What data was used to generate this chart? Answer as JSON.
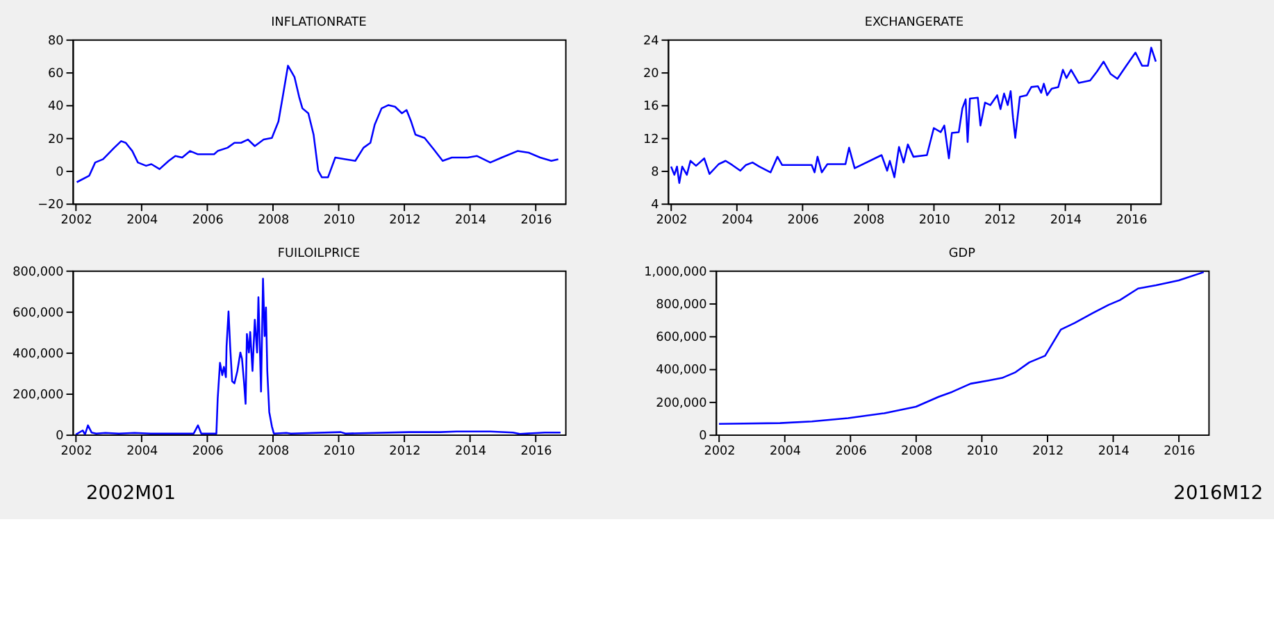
{
  "chart_data": [
    {
      "type": "line",
      "title": "INFLATIONRATE",
      "x": [
        2002.03,
        2002.41,
        2002.59,
        2002.83,
        2003.17,
        2003.38,
        2003.52,
        2003.72,
        2003.89,
        2004.14,
        2004.3,
        2004.55,
        2004.83,
        2005.03,
        2005.24,
        2005.48,
        2005.72,
        2006.21,
        2006.32,
        2006.62,
        2006.83,
        2007.03,
        2007.24,
        2007.45,
        2007.72,
        2007.97,
        2008.17,
        2008.3,
        2008.46,
        2008.66,
        2008.8,
        2008.9,
        2009.08,
        2009.24,
        2009.38,
        2009.49,
        2009.68,
        2009.9,
        2010.21,
        2010.51,
        2010.76,
        2010.97,
        2011.1,
        2011.31,
        2011.52,
        2011.72,
        2011.93,
        2012.07,
        2012.21,
        2012.34,
        2012.62,
        2012.9,
        2013.17,
        2013.45,
        2013.93,
        2014.21,
        2014.62,
        2014.97,
        2015.45,
        2015.79,
        2016.14,
        2016.48,
        2016.69
      ],
      "series": [
        {
          "color": "#0000ff",
          "values": [
            -7,
            -3,
            5,
            7,
            14,
            18,
            17,
            12,
            5,
            3,
            4,
            1,
            6,
            9,
            8,
            12,
            10,
            10,
            12,
            14,
            17,
            17,
            19,
            15,
            19,
            20,
            30,
            45,
            64,
            57,
            45,
            38,
            35,
            22,
            0,
            -4,
            -4,
            8,
            7,
            6,
            14,
            17,
            28,
            38,
            40,
            39,
            35,
            37,
            30,
            22,
            20,
            13,
            6,
            8,
            8,
            9,
            5,
            8,
            12,
            11,
            8,
            6,
            7
          ]
        }
      ],
      "xlim": [
        2001.9,
        2016.9
      ],
      "xticks": [
        2002,
        2004,
        2006,
        2008,
        2010,
        2012,
        2014,
        2016
      ],
      "ylim": [
        -20,
        80
      ],
      "yticks": [
        -20,
        0,
        20,
        40,
        60,
        80
      ],
      "grid": false
    },
    {
      "type": "line",
      "title": "EXCHANGERATE",
      "x": [
        2002.0,
        2002.1,
        2002.18,
        2002.25,
        2002.34,
        2002.48,
        2002.59,
        2002.76,
        2003.01,
        2003.17,
        2003.45,
        2003.66,
        2003.86,
        2004.11,
        2004.28,
        2004.48,
        2004.69,
        2005.03,
        2005.24,
        2005.38,
        2006.28,
        2006.37,
        2006.46,
        2006.59,
        2006.76,
        2007.31,
        2007.42,
        2007.59,
        2008.41,
        2008.58,
        2008.66,
        2008.8,
        2008.94,
        2009.08,
        2009.21,
        2009.38,
        2009.79,
        2010.0,
        2010.21,
        2010.32,
        2010.46,
        2010.55,
        2010.76,
        2010.87,
        2010.97,
        2011.03,
        2011.1,
        2011.34,
        2011.42,
        2011.56,
        2011.72,
        2011.93,
        2012.03,
        2012.14,
        2012.25,
        2012.34,
        2012.41,
        2012.48,
        2012.55,
        2012.62,
        2012.83,
        2012.97,
        2013.17,
        2013.27,
        2013.35,
        2013.45,
        2013.59,
        2013.79,
        2013.93,
        2014.04,
        2014.18,
        2014.41,
        2014.76,
        2014.97,
        2015.17,
        2015.38,
        2015.59,
        2015.86,
        2016.14,
        2016.34,
        2016.52,
        2016.62,
        2016.76
      ],
      "series": [
        {
          "color": "#0000ff",
          "values": [
            8.5,
            7.5,
            8.5,
            6.5,
            8.5,
            7.5,
            9.2,
            8.6,
            9.5,
            7.6,
            8.8,
            9.2,
            8.7,
            8.0,
            8.7,
            9.0,
            8.5,
            7.8,
            9.7,
            8.7,
            8.7,
            7.8,
            9.7,
            7.8,
            8.8,
            8.8,
            10.8,
            8.3,
            9.9,
            8.0,
            9.2,
            7.2,
            10.9,
            9.0,
            11.2,
            9.7,
            9.9,
            13.2,
            12.7,
            13.5,
            9.5,
            12.6,
            12.7,
            15.6,
            16.7,
            11.5,
            16.8,
            16.9,
            13.5,
            16.3,
            16.0,
            17.2,
            15.5,
            17.4,
            16.0,
            17.7,
            14.5,
            12.0,
            14.5,
            17.0,
            17.2,
            18.2,
            18.3,
            17.5,
            18.6,
            17.2,
            18.0,
            18.2,
            20.3,
            19.3,
            20.3,
            18.7,
            19.0,
            20.1,
            21.3,
            19.8,
            19.2,
            20.8,
            22.4,
            20.8,
            20.8,
            23.0,
            21.3
          ]
        }
      ],
      "xlim": [
        2001.9,
        2016.9
      ],
      "xticks": [
        2002,
        2004,
        2006,
        2008,
        2010,
        2012,
        2014,
        2016
      ],
      "ylim": [
        4,
        24
      ],
      "yticks": [
        4,
        8,
        12,
        16,
        20,
        24
      ],
      "grid": false
    },
    {
      "type": "line",
      "title": "FUILOILPRICE",
      "x": [
        2002.0,
        2002.21,
        2002.28,
        2002.37,
        2002.48,
        2002.62,
        2002.9,
        2003.31,
        2003.79,
        2004.28,
        2005.59,
        2005.72,
        2005.82,
        2006.28,
        2006.32,
        2006.39,
        2006.46,
        2006.51,
        2006.57,
        2006.59,
        2006.65,
        2006.7,
        2006.76,
        2006.83,
        2006.92,
        2007.01,
        2007.06,
        2007.12,
        2007.17,
        2007.21,
        2007.27,
        2007.31,
        2007.38,
        2007.45,
        2007.52,
        2007.56,
        2007.6,
        2007.64,
        2007.7,
        2007.75,
        2007.79,
        2007.83,
        2007.89,
        2007.97,
        2008.03,
        2008.41,
        2008.55,
        2010.07,
        2010.21,
        2012.14,
        2013.1,
        2013.59,
        2014.62,
        2015.31,
        2015.52,
        2016.28,
        2016.76
      ],
      "series": [
        {
          "color": "#0000ff",
          "values": [
            0,
            20000,
            0,
            45000,
            10000,
            5000,
            8000,
            5000,
            8000,
            5000,
            5000,
            45000,
            5000,
            5000,
            175000,
            350000,
            290000,
            330000,
            280000,
            430000,
            600000,
            430000,
            260000,
            250000,
            310000,
            400000,
            370000,
            260000,
            150000,
            490000,
            400000,
            500000,
            310000,
            560000,
            400000,
            670000,
            450000,
            210000,
            760000,
            480000,
            620000,
            310000,
            110000,
            40000,
            5000,
            8000,
            5000,
            12000,
            5000,
            12000,
            12000,
            15000,
            15000,
            10000,
            3000,
            10000,
            10000
          ]
        }
      ],
      "xlim": [
        2001.9,
        2016.9
      ],
      "xticks": [
        2002,
        2004,
        2006,
        2008,
        2010,
        2012,
        2014,
        2016
      ],
      "ylim": [
        0,
        800000
      ],
      "yticks": [
        0,
        {
          "value": 200000,
          "label": "200,000"
        },
        {
          "value": 400000,
          "label": "400,000"
        },
        {
          "value": 600000,
          "label": "600,000"
        },
        {
          "value": 800000,
          "label": "800,000"
        }
      ],
      "grid": false
    },
    {
      "type": "line",
      "title": "GDP",
      "x": [
        2002.0,
        2003.86,
        2004.83,
        2005.93,
        2007.03,
        2008.0,
        2008.69,
        2009.1,
        2009.66,
        2010.21,
        2010.62,
        2011.03,
        2011.45,
        2011.93,
        2012.41,
        2012.83,
        2013.38,
        2013.86,
        2014.21,
        2014.76,
        2015.31,
        2016.0,
        2016.76
      ],
      "series": [
        {
          "color": "#0000ff",
          "values": [
            65000,
            70000,
            80000,
            100000,
            130000,
            170000,
            230000,
            260000,
            310000,
            330000,
            345000,
            380000,
            440000,
            480000,
            640000,
            680000,
            740000,
            790000,
            820000,
            890000,
            910000,
            940000,
            990000
          ]
        }
      ],
      "xlim": [
        2001.9,
        2016.9
      ],
      "xticks": [
        2002,
        2004,
        2006,
        2008,
        2010,
        2012,
        2014,
        2016
      ],
      "ylim": [
        0,
        1000000
      ],
      "yticks": [
        0,
        {
          "value": 200000,
          "label": "200,000"
        },
        {
          "value": 400000,
          "label": "400,000"
        },
        {
          "value": 600000,
          "label": "600,000"
        },
        {
          "value": 800000,
          "label": "800,000"
        },
        {
          "value": 1000000,
          "label": "1,000,000"
        }
      ],
      "grid": false,
      "annotations": [
        "2002M01",
        "2016M12"
      ]
    }
  ]
}
